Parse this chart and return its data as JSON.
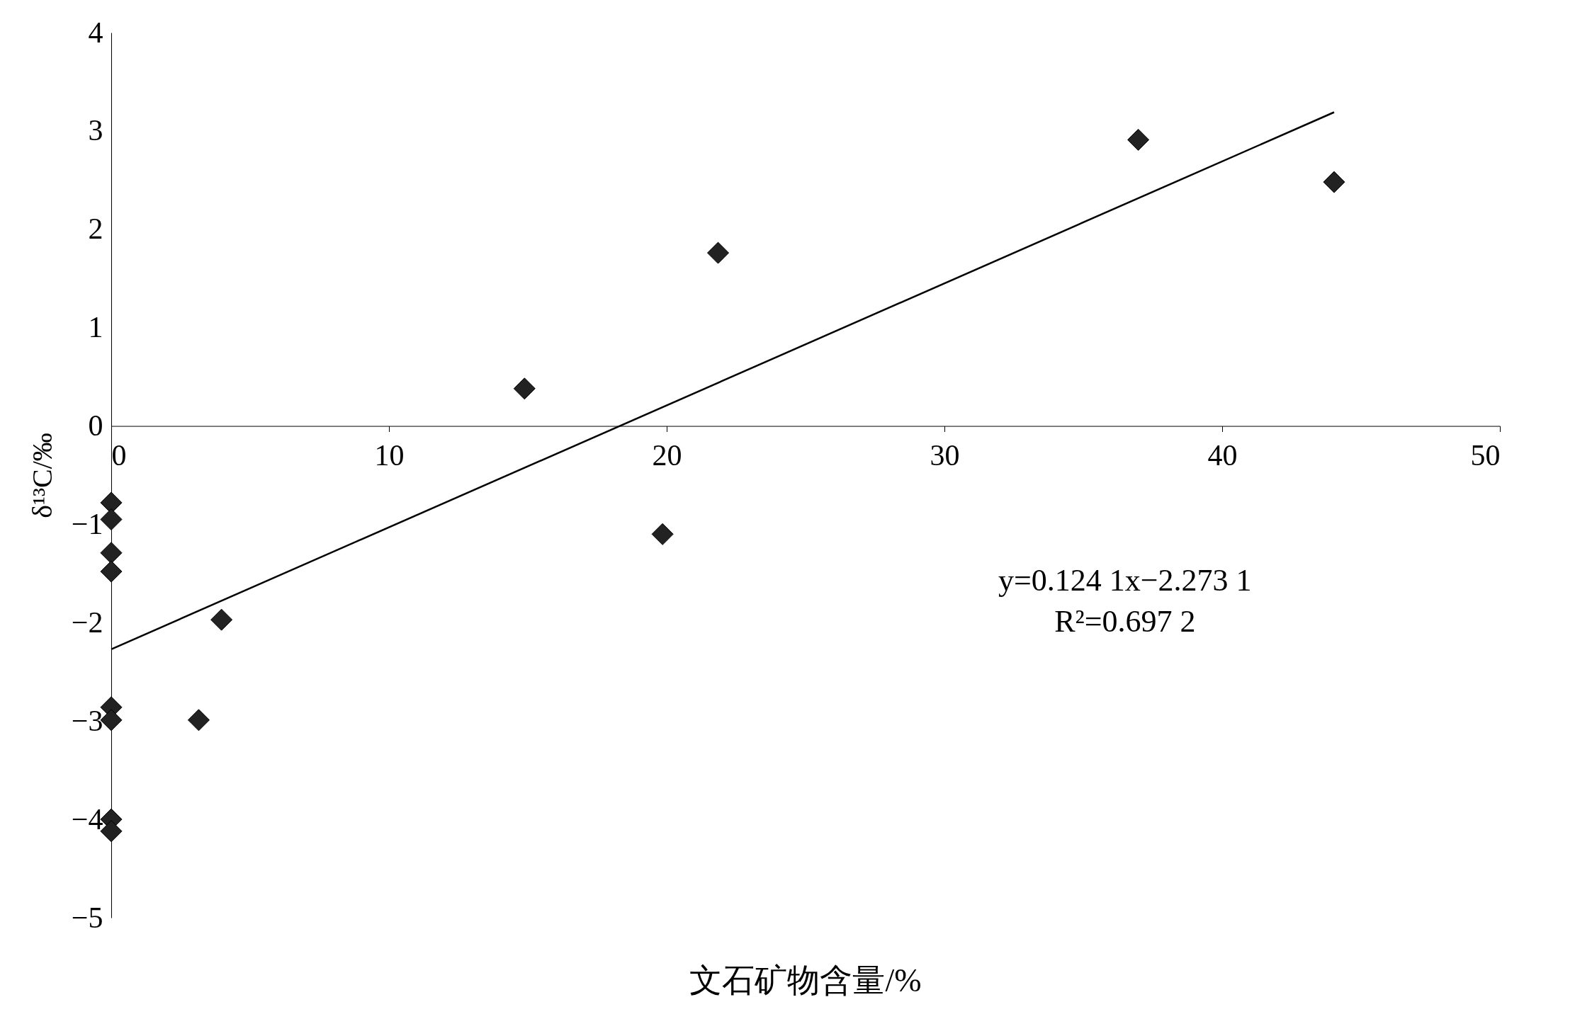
{
  "chart_data": {
    "type": "scatter",
    "xlabel": "文石矿物含量/%",
    "ylabel": "δ¹³C/‰",
    "xlim": [
      0,
      50
    ],
    "ylim": [
      -5,
      4
    ],
    "xticks": [
      0,
      10,
      20,
      30,
      40,
      50
    ],
    "yticks": [
      -5,
      -4,
      -3,
      -2,
      -1,
      0,
      1,
      2,
      3,
      4
    ],
    "grid": false,
    "series": [
      {
        "marker": "diamond",
        "color": "#222222",
        "x": [
          0,
          0,
          0,
          0,
          0,
          0,
          0,
          0,
          3.97,
          3.15,
          14.88,
          19.85,
          21.85,
          36.98,
          44.03
        ],
        "values": [
          -0.78,
          -0.95,
          -1.29,
          -1.48,
          -2.86,
          -2.99,
          -4.0,
          -4.12,
          -1.97,
          -2.99,
          0.38,
          -1.1,
          1.76,
          2.91,
          2.48
        ]
      },
      {
        "type": "line",
        "marker": "none",
        "color": "#000000",
        "x": [
          0,
          44.03
        ],
        "values": [
          -2.27,
          3.19
        ]
      }
    ],
    "annotations": [
      "y=0.124 1x−2.273 1",
      "R²=0.697 2"
    ]
  }
}
